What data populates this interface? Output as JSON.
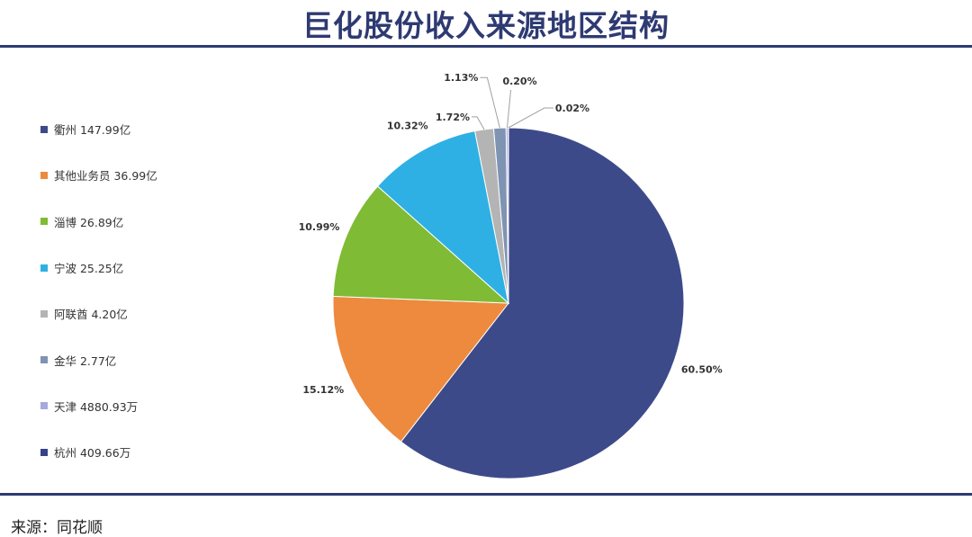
{
  "title": "巨化股份收入来源地区结构",
  "source": "来源：同花顺",
  "chart_data": {
    "type": "pie",
    "title": "巨化股份收入来源地区结构",
    "legend_placement": "left",
    "slices": [
      {
        "name": "衢州 147.99亿",
        "pct_label": "60.50%",
        "value": 60.5,
        "color": "#3d4a8a"
      },
      {
        "name": "其他业务员 36.99亿",
        "pct_label": "15.12%",
        "value": 15.12,
        "color": "#ed8a3e"
      },
      {
        "name": "淄博 26.89亿",
        "pct_label": "10.99%",
        "value": 10.99,
        "color": "#7fbb34"
      },
      {
        "name": "宁波 25.25亿",
        "pct_label": "10.32%",
        "value": 10.32,
        "color": "#2fb0e4"
      },
      {
        "name": "阿联酋 4.20亿",
        "pct_label": "1.72%",
        "value": 1.72,
        "color": "#b4b4b4"
      },
      {
        "name": "金华 2.77亿",
        "pct_label": "1.13%",
        "value": 1.13,
        "color": "#7f93b3"
      },
      {
        "name": "天津 4880.93万",
        "pct_label": "0.20%",
        "value": 0.2,
        "color": "#a6a9dd"
      },
      {
        "name": "杭州 409.66万",
        "pct_label": "0.02%",
        "value": 0.02,
        "color": "#34428a"
      }
    ]
  }
}
